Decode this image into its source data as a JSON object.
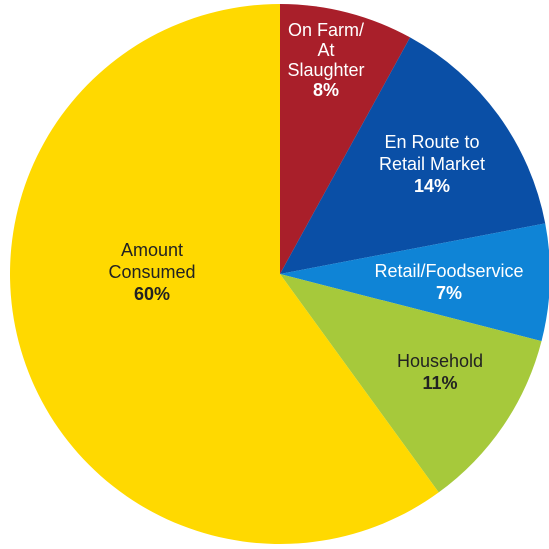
{
  "chart_data": {
    "type": "pie",
    "slices": [
      {
        "label": "On Farm/ At Slaughter",
        "label_lines": [
          "On Farm/",
          "At",
          "Slaughter"
        ],
        "value": 8,
        "value_label": "8%",
        "color": "#A91F2A",
        "text_color": "#FFFFFF"
      },
      {
        "label": "En Route to Retail Market",
        "label_lines": [
          "En Route to",
          "Retail Market"
        ],
        "value": 14,
        "value_label": "14%",
        "color": "#0A4FA6",
        "text_color": "#FFFFFF"
      },
      {
        "label": "Retail/Foodservice",
        "label_lines": [
          "Retail/Foodservice"
        ],
        "value": 7,
        "value_label": "7%",
        "color": "#0F84D6",
        "text_color": "#FFFFFF"
      },
      {
        "label": "Household",
        "label_lines": [
          "Household"
        ],
        "value": 11,
        "value_label": "11%",
        "color": "#A6C93B",
        "text_color": "#222222"
      },
      {
        "label": "Amount Consumed",
        "label_lines": [
          "Amount",
          "Consumed"
        ],
        "value": 60,
        "value_label": "60%",
        "color": "#FFD900",
        "text_color": "#222222"
      }
    ],
    "start_direction": "top",
    "direction": "clockwise"
  }
}
